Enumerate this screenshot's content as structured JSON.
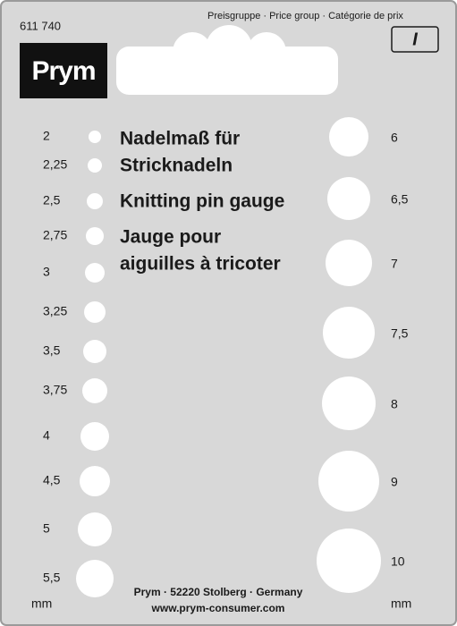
{
  "article_number": "611 740",
  "price_group": {
    "label": "Preisgruppe · Price group · Catégorie de prix",
    "value": "I"
  },
  "brand": "Prym",
  "title_lines": [
    "Nadelmaß für",
    "Stricknadeln",
    "Knitting pin gauge",
    "Jauge pour",
    "aiguilles à tricoter"
  ],
  "left_sizes": [
    "2",
    "2,25",
    "2,5",
    "2,75",
    "3",
    "3,25",
    "3,5",
    "3,75",
    "4",
    "4,5",
    "5",
    "5,5"
  ],
  "right_sizes": [
    "6",
    "6,5",
    "7",
    "7,5",
    "8",
    "9",
    "10"
  ],
  "unit": "mm",
  "footer": {
    "address": "Prym · 52220 Stolberg · Germany",
    "website": "www.prym-consumer.com"
  }
}
